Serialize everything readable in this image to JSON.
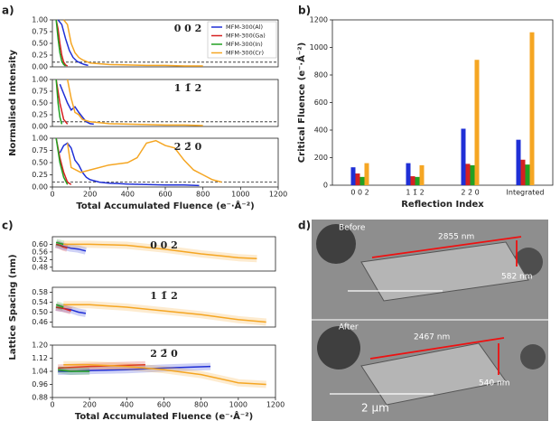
{
  "panel_labels": [
    "a)",
    "b)",
    "c)",
    "d)"
  ],
  "micrograph": {
    "before_label": "Before",
    "after_label": "After",
    "before_length": "2855 nm",
    "before_width": "582 nm",
    "after_length": "2467 nm",
    "after_width": "540 nm",
    "scale_bar": "2 μm"
  },
  "chart_data": [
    {
      "type": "line",
      "title": "0 0 2",
      "xlim": [
        0,
        1200
      ],
      "ylim": [
        0,
        1
      ],
      "yticks": [
        {
          "value": 0,
          "label": "0.00"
        },
        {
          "value": 0.25,
          "label": "0.25"
        },
        {
          "value": 0.5,
          "label": "0.50"
        },
        {
          "value": 0.75,
          "label": "0.75"
        },
        {
          "value": 1,
          "label": "1.00"
        }
      ],
      "threshold": 0.1,
      "legend": "upper right",
      "series": [
        {
          "name": "MFM-300(Al)",
          "color": "#1f2fd6",
          "x": [
            30,
            50,
            70,
            90,
            110,
            130,
            150,
            170,
            190
          ],
          "values": [
            1.0,
            0.9,
            0.6,
            0.35,
            0.2,
            0.12,
            0.08,
            0.05,
            0.03
          ]
        },
        {
          "name": "MFM-300(Ga)",
          "color": "#d62020",
          "x": [
            20,
            30,
            40,
            50,
            60,
            70,
            80
          ],
          "values": [
            1.0,
            0.8,
            0.5,
            0.25,
            0.1,
            0.04,
            0.02
          ]
        },
        {
          "name": "MFM-300(In)",
          "color": "#22a022",
          "x": [
            20,
            30,
            40,
            50,
            60,
            70
          ],
          "values": [
            1.0,
            0.6,
            0.3,
            0.12,
            0.05,
            0.02
          ]
        },
        {
          "name": "MFM-300(Cr)",
          "color": "#f5a623",
          "x": [
            60,
            80,
            100,
            120,
            140,
            160,
            200,
            300,
            400,
            500,
            600,
            700,
            800
          ],
          "values": [
            1.0,
            0.9,
            0.5,
            0.3,
            0.2,
            0.15,
            0.08,
            0.05,
            0.04,
            0.03,
            0.03,
            0.02,
            0.02
          ]
        }
      ]
    },
    {
      "type": "line",
      "title": "1 1̄ 2",
      "ylabel": "Normalised Intensity",
      "xlim": [
        0,
        1200
      ],
      "ylim": [
        0,
        1
      ],
      "yticks": [
        {
          "value": 0,
          "label": "0.00"
        },
        {
          "value": 0.25,
          "label": "0.25"
        },
        {
          "value": 0.5,
          "label": "0.50"
        },
        {
          "value": 0.75,
          "label": "0.75"
        },
        {
          "value": 1,
          "label": "1.00"
        }
      ],
      "threshold": 0.1,
      "series": [
        {
          "color": "#1f2fd6",
          "x": [
            40,
            60,
            80,
            100,
            120,
            140,
            160,
            180,
            200,
            220
          ],
          "values": [
            0.9,
            0.7,
            0.5,
            0.35,
            0.42,
            0.3,
            0.2,
            0.1,
            0.06,
            0.05
          ]
        },
        {
          "color": "#d62020",
          "x": [
            20,
            40,
            60,
            80
          ],
          "values": [
            1.0,
            0.5,
            0.15,
            0.05
          ]
        },
        {
          "color": "#22a022",
          "x": [
            20,
            30,
            40,
            50
          ],
          "values": [
            1.0,
            0.5,
            0.2,
            0.05
          ]
        },
        {
          "color": "#f5a623",
          "x": [
            80,
            100,
            120,
            140,
            160,
            200,
            250,
            300,
            400,
            500,
            600,
            700,
            800
          ],
          "values": [
            1.0,
            0.6,
            0.3,
            0.25,
            0.15,
            0.1,
            0.08,
            0.06,
            0.05,
            0.04,
            0.03,
            0.03,
            0.02
          ]
        }
      ]
    },
    {
      "type": "line",
      "title": "2 2̄ 0",
      "xlabel": "Total Accumulated Fluence (e⁻·Å⁻²)",
      "xlim": [
        0,
        1200
      ],
      "ylim": [
        0,
        1
      ],
      "xticks": [
        0,
        200,
        400,
        600,
        800,
        1000,
        1200
      ],
      "yticks": [
        {
          "value": 0,
          "label": "0.00"
        },
        {
          "value": 0.25,
          "label": "0.25"
        },
        {
          "value": 0.5,
          "label": "0.50"
        },
        {
          "value": 0.75,
          "label": "0.75"
        },
        {
          "value": 1,
          "label": "1.00"
        }
      ],
      "threshold": 0.1,
      "series": [
        {
          "color": "#1f2fd6",
          "x": [
            40,
            60,
            80,
            100,
            120,
            140,
            160,
            180,
            200,
            250,
            300,
            400,
            500,
            600,
            700,
            780
          ],
          "values": [
            0.7,
            0.85,
            0.9,
            0.8,
            0.55,
            0.45,
            0.3,
            0.2,
            0.15,
            0.1,
            0.08,
            0.06,
            0.05,
            0.04,
            0.04,
            0.03
          ]
        },
        {
          "color": "#d62020",
          "x": [
            20,
            40,
            60,
            80,
            100
          ],
          "values": [
            1.0,
            0.6,
            0.3,
            0.1,
            0.05
          ]
        },
        {
          "color": "#22a022",
          "x": [
            20,
            40,
            60,
            80
          ],
          "values": [
            1.0,
            0.5,
            0.2,
            0.05
          ]
        },
        {
          "color": "#f5a623",
          "x": [
            80,
            100,
            150,
            200,
            300,
            400,
            450,
            500,
            550,
            600,
            650,
            700,
            750,
            800,
            850,
            900
          ],
          "values": [
            0.9,
            0.4,
            0.3,
            0.35,
            0.45,
            0.5,
            0.6,
            0.9,
            0.95,
            0.85,
            0.8,
            0.55,
            0.35,
            0.25,
            0.15,
            0.1
          ]
        }
      ]
    },
    {
      "type": "bar",
      "xlabel": "Reflection Index",
      "ylabel": "Critical Fluence (e⁻·Å⁻²)",
      "categories": [
        "0 0 2",
        "1 1̄ 2",
        "2 2̄ 0",
        "Integrated"
      ],
      "ylim": [
        0,
        1200
      ],
      "yticks": [
        0,
        200,
        400,
        600,
        800,
        1000,
        1200
      ],
      "series": [
        {
          "color": "#1f2fd6",
          "values": [
            130,
            160,
            410,
            330
          ]
        },
        {
          "color": "#d62020",
          "values": [
            85,
            65,
            155,
            185
          ]
        },
        {
          "color": "#22a022",
          "values": [
            60,
            60,
            145,
            150
          ]
        },
        {
          "color": "#f5a623",
          "values": [
            160,
            145,
            910,
            1110
          ]
        }
      ]
    },
    {
      "type": "line",
      "title": "0 0 2",
      "xlim": [
        0,
        1200
      ],
      "ylim": [
        0.46,
        0.64
      ],
      "yticks": [
        {
          "value": 0.48,
          "label": "0.48"
        },
        {
          "value": 0.52,
          "label": "0.52"
        },
        {
          "value": 0.56,
          "label": "0.56"
        },
        {
          "value": 0.6,
          "label": "0.60"
        }
      ],
      "series": [
        {
          "color": "#1f2fd6",
          "x": [
            20,
            60,
            100,
            140,
            180
          ],
          "values": [
            0.6,
            0.59,
            0.58,
            0.575,
            0.565
          ]
        },
        {
          "color": "#d62020",
          "x": [
            20,
            40,
            60,
            80
          ],
          "values": [
            0.6,
            0.595,
            0.585,
            0.58
          ]
        },
        {
          "color": "#22a022",
          "x": [
            20,
            40,
            60
          ],
          "values": [
            0.61,
            0.605,
            0.6
          ]
        },
        {
          "color": "#f5a623",
          "x": [
            60,
            200,
            400,
            600,
            800,
            1000,
            1100
          ],
          "values": [
            0.6,
            0.6,
            0.595,
            0.575,
            0.55,
            0.53,
            0.525
          ]
        }
      ]
    },
    {
      "type": "line",
      "title": "1 1̄ 2",
      "ylabel": "Lattice Spacing (nm)",
      "xlim": [
        0,
        1200
      ],
      "ylim": [
        0.44,
        0.6
      ],
      "yticks": [
        {
          "value": 0.46,
          "label": "0.46"
        },
        {
          "value": 0.5,
          "label": "0.50"
        },
        {
          "value": 0.54,
          "label": "0.54"
        },
        {
          "value": 0.58,
          "label": "0.58"
        }
      ],
      "series": [
        {
          "color": "#1f2fd6",
          "x": [
            20,
            60,
            100,
            140,
            180
          ],
          "values": [
            0.52,
            0.515,
            0.51,
            0.5,
            0.495
          ]
        },
        {
          "color": "#d62020",
          "x": [
            20,
            60,
            100
          ],
          "values": [
            0.52,
            0.515,
            0.505
          ]
        },
        {
          "color": "#22a022",
          "x": [
            20,
            40,
            60
          ],
          "values": [
            0.53,
            0.525,
            0.52
          ]
        },
        {
          "color": "#f5a623",
          "x": [
            60,
            200,
            400,
            600,
            800,
            1000,
            1150
          ],
          "values": [
            0.53,
            0.53,
            0.52,
            0.505,
            0.49,
            0.47,
            0.46
          ]
        }
      ]
    },
    {
      "type": "line",
      "title": "2 2̄ 0",
      "xlabel": "Total Accumulated Fluence (e⁻·Å⁻²)",
      "xlim": [
        0,
        1200
      ],
      "ylim": [
        0.88,
        1.2
      ],
      "xticks": [
        0,
        200,
        400,
        600,
        800,
        1000,
        1200
      ],
      "yticks": [
        {
          "value": 0.88,
          "label": "0.88"
        },
        {
          "value": 0.96,
          "label": "0.96"
        },
        {
          "value": 1.04,
          "label": "1.04"
        },
        {
          "value": 1.12,
          "label": "1.12"
        },
        {
          "value": 1.2,
          "label": "1.20"
        }
      ],
      "series": [
        {
          "color": "#1f2fd6",
          "x": [
            30,
            100,
            200,
            400,
            600,
            850
          ],
          "values": [
            1.04,
            1.04,
            1.045,
            1.05,
            1.06,
            1.07
          ]
        },
        {
          "color": "#d62020",
          "x": [
            30,
            200,
            500
          ],
          "values": [
            1.06,
            1.07,
            1.08
          ]
        },
        {
          "color": "#22a022",
          "x": [
            30,
            100,
            200
          ],
          "values": [
            1.05,
            1.04,
            1.04
          ]
        },
        {
          "color": "#f5a623",
          "x": [
            60,
            200,
            400,
            600,
            800,
            1000,
            1150
          ],
          "values": [
            1.08,
            1.08,
            1.07,
            1.05,
            1.02,
            0.97,
            0.96
          ]
        }
      ]
    }
  ]
}
